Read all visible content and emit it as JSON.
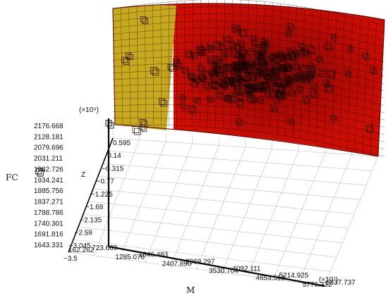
{
  "chart_data": {
    "type": "surface3d",
    "title": "",
    "multiplier_fc": "(×10⁴)",
    "multiplier_m": "(×10⁷)",
    "axes": {
      "fc": {
        "label": "FC",
        "ticks": [
          "2176.668",
          "2128.181",
          "2079.696",
          "2031.211",
          "1982.726",
          "1934.241",
          "1885.756",
          "1837.271",
          "1788.786",
          "1740.301",
          "1691.816",
          "1643.331"
        ]
      },
      "m": {
        "label": "M",
        "ticks": [
          "162.262",
          "723.669",
          "1285.076",
          "1846.483",
          "2407.890",
          "2969.297",
          "3530.704",
          "4092.111",
          "4653.518",
          "5214.925",
          "5776.332",
          "6337.737"
        ]
      },
      "z": {
        "label": "Z",
        "ticks": [
          "0.595",
          "0.14",
          "−0.315",
          "−0.77",
          "−1.225",
          "−1.68",
          "−2.135",
          "−2.59",
          "−3.045",
          "−3.5"
        ]
      }
    },
    "surface_colors": {
      "yellow_region": "#c8a81e",
      "red_region": "#cc0d02",
      "dark_red": "#8a0000"
    },
    "grid": true,
    "legend_marker_label": "Z"
  }
}
